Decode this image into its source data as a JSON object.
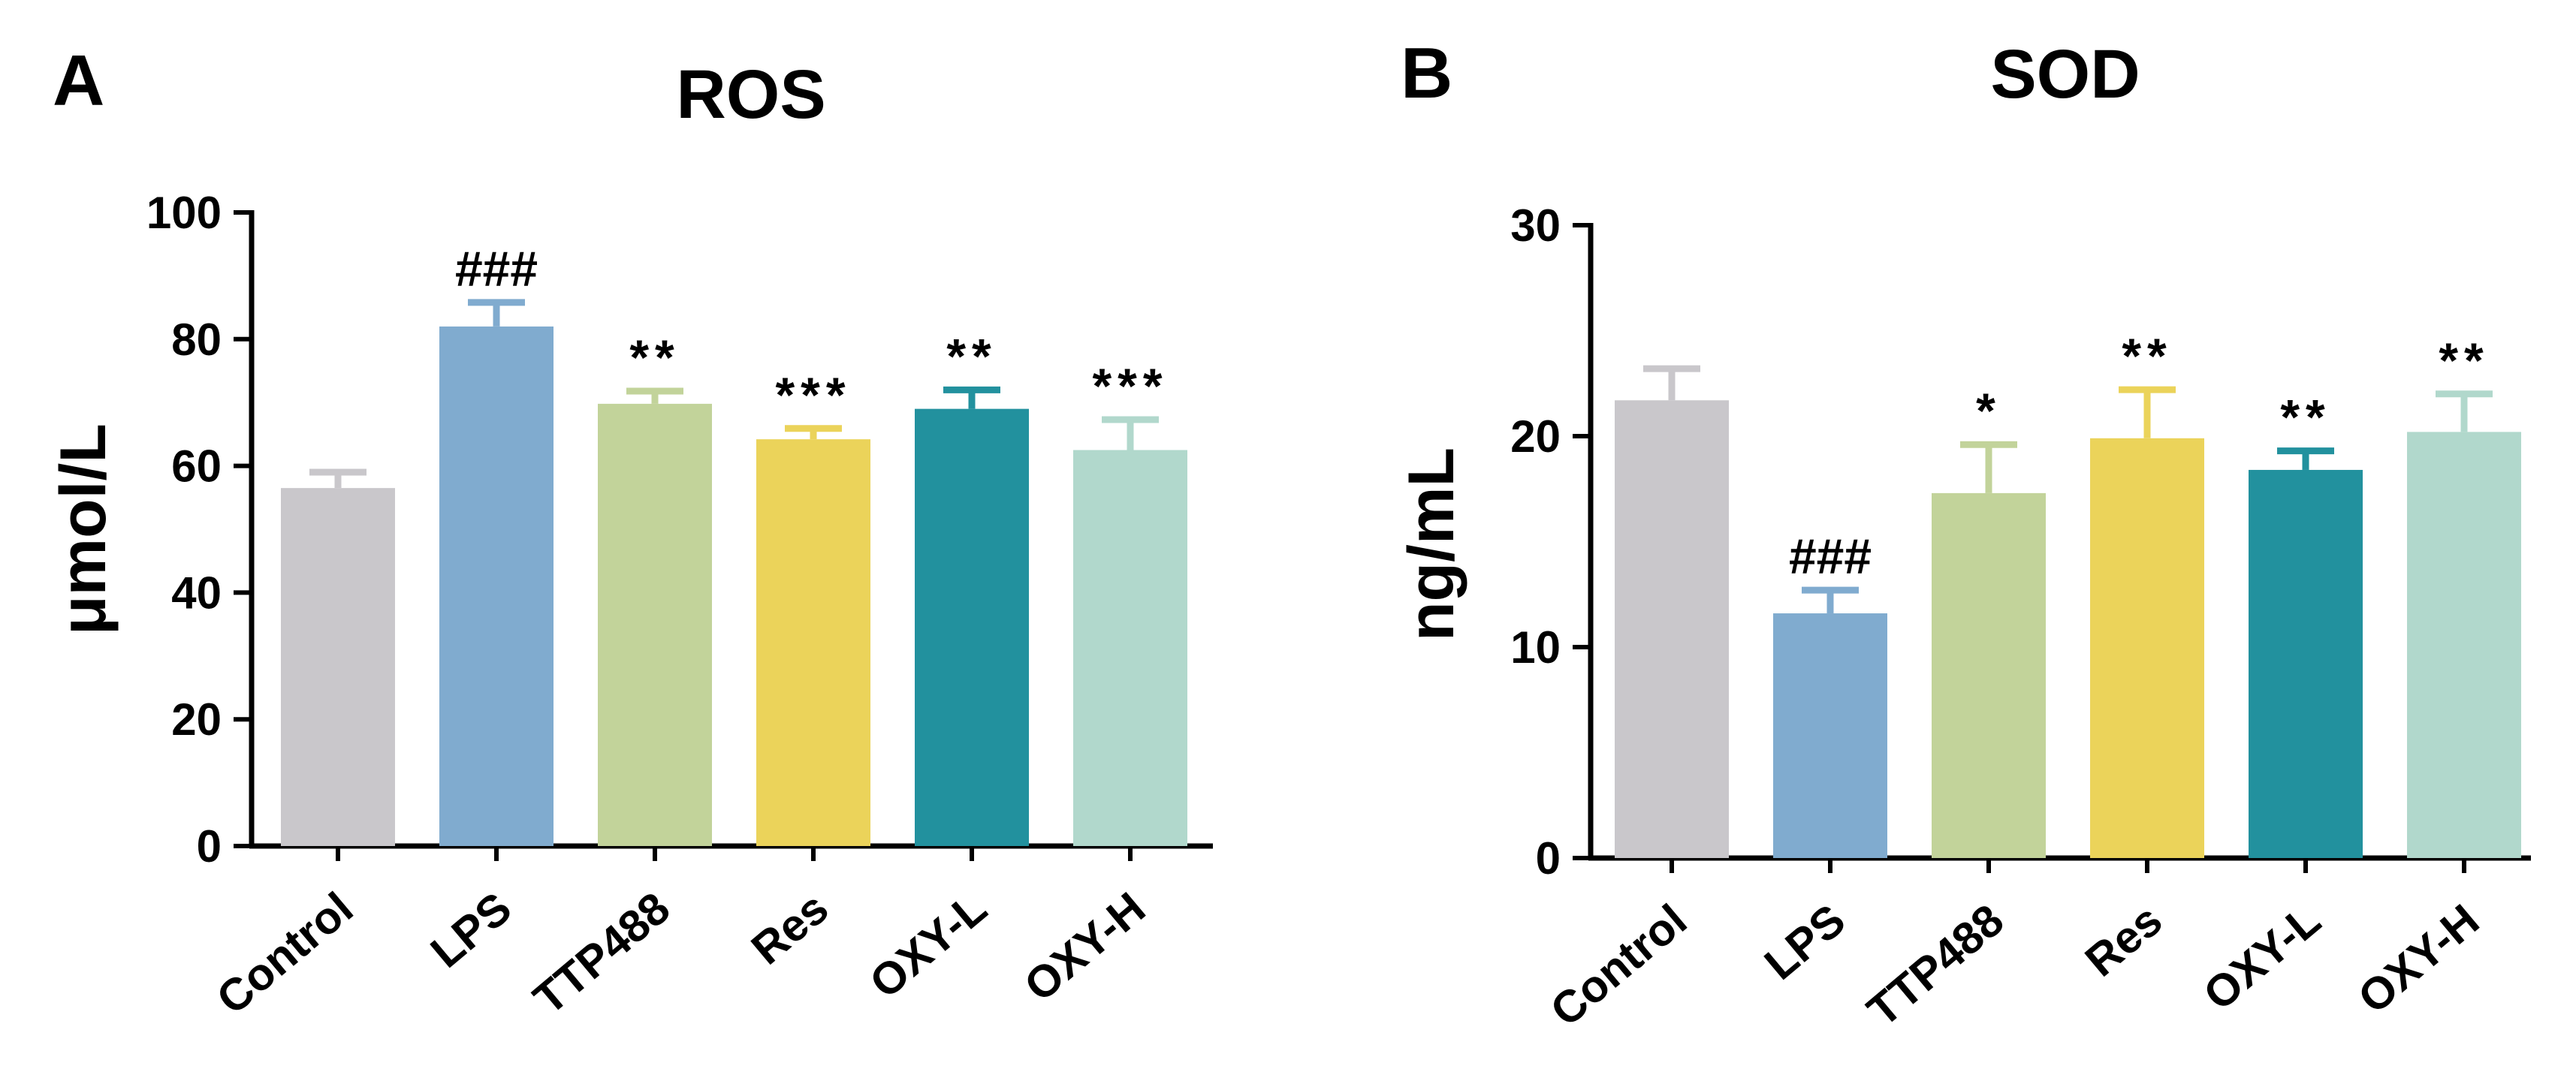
{
  "chart_data": [
    {
      "panel_label": "A",
      "type": "bar",
      "title": "ROS",
      "xlabel": "",
      "ylabel": "μmol/L",
      "ylim": [
        0,
        100
      ],
      "yticks": [
        "0",
        "20",
        "40",
        "60",
        "80",
        "100"
      ],
      "ytick_values": [
        0,
        20,
        40,
        60,
        80,
        100
      ],
      "categories": [
        "Control",
        "LPS",
        "TTP488",
        "Res",
        "OXY-L",
        "OXY-H"
      ],
      "values": [
        56.5,
        82,
        69.8,
        64.2,
        69,
        62.5
      ],
      "errors": [
        2.5,
        3.8,
        2.0,
        1.7,
        3.0,
        4.8
      ],
      "annotations": [
        "",
        "###",
        "**",
        "***",
        "**",
        "***"
      ],
      "colors": [
        "#c9c7cb",
        "#80abcf",
        "#c2d39a",
        "#ebd35a",
        "#22919e",
        "#b1d8cc"
      ],
      "grid": false
    },
    {
      "panel_label": "B",
      "type": "bar",
      "title": "SOD",
      "xlabel": "",
      "ylabel": "ng/mL",
      "ylim": [
        0,
        30
      ],
      "yticks": [
        "0",
        "10",
        "20",
        "30"
      ],
      "ytick_values": [
        0,
        10,
        20,
        30
      ],
      "categories": [
        "Control",
        "LPS",
        "TTP488",
        "Res",
        "OXY-L",
        "OXY-H"
      ],
      "values": [
        21.7,
        11.6,
        17.3,
        19.9,
        18.4,
        20.2
      ],
      "errors": [
        1.5,
        1.1,
        2.3,
        2.3,
        0.9,
        1.8
      ],
      "annotations": [
        "",
        "###",
        "*",
        "**",
        "**",
        "**"
      ],
      "colors": [
        "#c9c7cb",
        "#80abcf",
        "#c2d39a",
        "#ebd35a",
        "#22919e",
        "#b1d8cc"
      ],
      "grid": false
    }
  ]
}
